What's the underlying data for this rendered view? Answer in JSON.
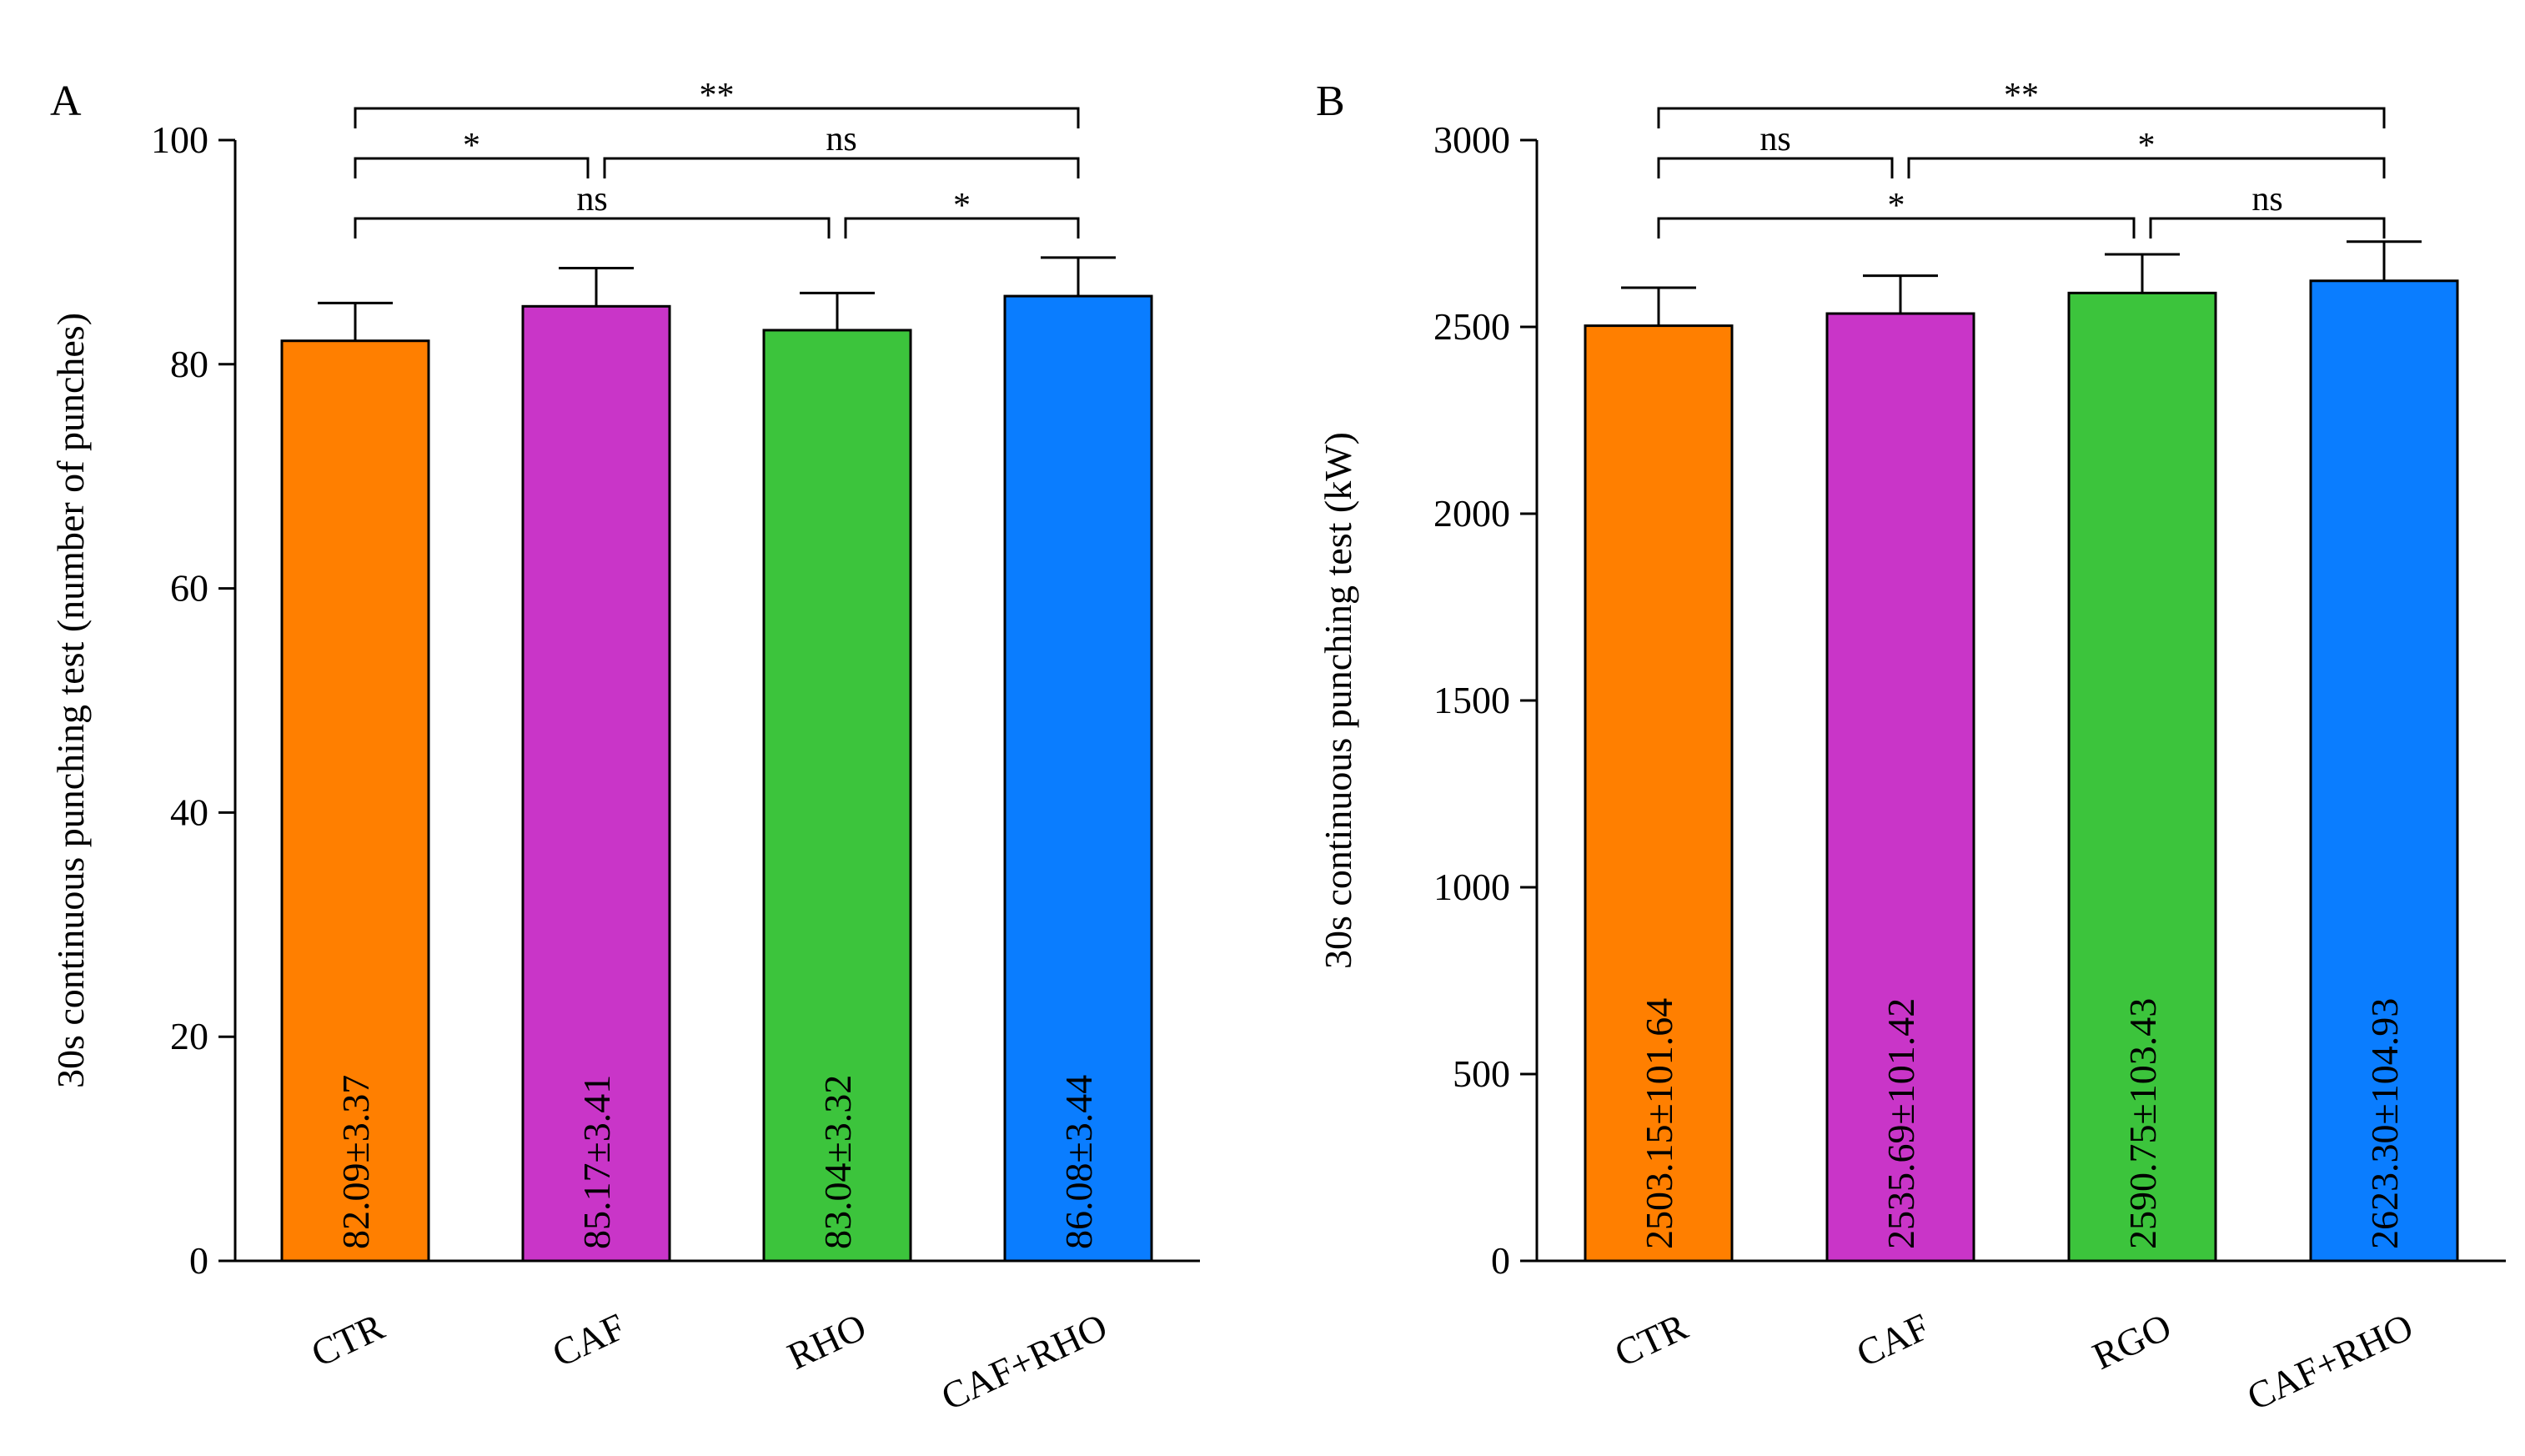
{
  "chart_data": [
    {
      "panel": "A",
      "type": "bar",
      "ylabel": "30s continuous punching test (number of punches)",
      "ylim": [
        0,
        100
      ],
      "yticks": [
        0,
        20,
        40,
        60,
        80,
        100
      ],
      "categories": [
        "CTR",
        "CAF",
        "RHO",
        "CAF+RHO"
      ],
      "values": [
        82.09,
        85.17,
        83.04,
        86.08
      ],
      "errors": [
        3.37,
        3.41,
        3.32,
        3.44
      ],
      "bar_labels": [
        "82.09±3.37",
        "85.17±3.41",
        "83.04±3.32",
        "86.08±3.44"
      ],
      "colors": [
        "#ff7f00",
        "#c935c8",
        "#3cc43c",
        "#0a7dff"
      ],
      "significance": [
        {
          "from": 0,
          "to": 3,
          "label": "**",
          "level": 3
        },
        {
          "from": 0,
          "to": 1,
          "label": "*",
          "level": 2
        },
        {
          "from": 1,
          "to": 3,
          "label": "ns",
          "level": 2
        },
        {
          "from": 0,
          "to": 2,
          "label": "ns",
          "level": 1
        },
        {
          "from": 2,
          "to": 3,
          "label": "*",
          "level": 1
        }
      ]
    },
    {
      "panel": "B",
      "type": "bar",
      "ylabel": "30s continuous punching test (kW)",
      "ylim": [
        0,
        3000
      ],
      "yticks": [
        0,
        500,
        1000,
        1500,
        2000,
        2500,
        3000
      ],
      "categories": [
        "CTR",
        "CAF",
        "RGO",
        "CAF+RHO"
      ],
      "values": [
        2503.15,
        2535.69,
        2590.75,
        2623.3
      ],
      "errors": [
        101.64,
        101.42,
        103.43,
        104.93
      ],
      "bar_labels": [
        "2503.15±101.64",
        "2535.69±101.42",
        "2590.75±103.43",
        "2623.30±104.93"
      ],
      "colors": [
        "#ff7f00",
        "#c935c8",
        "#3cc43c",
        "#0a7dff"
      ],
      "significance": [
        {
          "from": 0,
          "to": 3,
          "label": "**",
          "level": 3
        },
        {
          "from": 0,
          "to": 1,
          "label": "ns",
          "level": 2
        },
        {
          "from": 1,
          "to": 3,
          "label": "*",
          "level": 2
        },
        {
          "from": 0,
          "to": 2,
          "label": "*",
          "level": 1
        },
        {
          "from": 2,
          "to": 3,
          "label": "ns",
          "level": 1
        }
      ]
    }
  ]
}
